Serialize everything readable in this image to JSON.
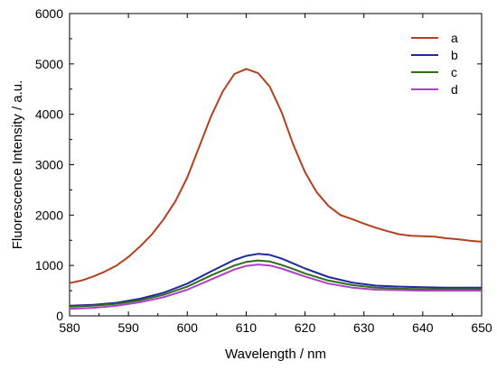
{
  "chart_data": {
    "type": "line",
    "title": "",
    "xlabel": "Wavelength / nm",
    "ylabel": "Fluorescence Intensity / a.u.",
    "xlim": [
      580,
      650
    ],
    "ylim": [
      0,
      6000
    ],
    "xticks": [
      580,
      590,
      600,
      610,
      620,
      630,
      640,
      650
    ],
    "yticks": [
      0,
      1000,
      2000,
      3000,
      4000,
      5000,
      6000
    ],
    "grid": false,
    "legend_position": "top-right",
    "series": [
      {
        "name": "a",
        "color": "#b3401f",
        "points": [
          [
            580,
            650
          ],
          [
            582,
            700
          ],
          [
            584,
            780
          ],
          [
            586,
            880
          ],
          [
            588,
            1000
          ],
          [
            590,
            1170
          ],
          [
            592,
            1380
          ],
          [
            594,
            1620
          ],
          [
            596,
            1920
          ],
          [
            598,
            2280
          ],
          [
            600,
            2750
          ],
          [
            602,
            3350
          ],
          [
            604,
            3950
          ],
          [
            606,
            4450
          ],
          [
            608,
            4800
          ],
          [
            610,
            4900
          ],
          [
            612,
            4820
          ],
          [
            614,
            4550
          ],
          [
            616,
            4050
          ],
          [
            618,
            3400
          ],
          [
            620,
            2850
          ],
          [
            622,
            2450
          ],
          [
            624,
            2180
          ],
          [
            626,
            2000
          ],
          [
            628,
            1920
          ],
          [
            630,
            1830
          ],
          [
            632,
            1750
          ],
          [
            634,
            1680
          ],
          [
            636,
            1620
          ],
          [
            638,
            1590
          ],
          [
            640,
            1580
          ],
          [
            642,
            1570
          ],
          [
            644,
            1540
          ],
          [
            646,
            1520
          ],
          [
            648,
            1490
          ],
          [
            650,
            1470
          ]
        ]
      },
      {
        "name": "b",
        "color": "#1f2a9e",
        "points": [
          [
            580,
            200
          ],
          [
            584,
            220
          ],
          [
            588,
            260
          ],
          [
            592,
            340
          ],
          [
            596,
            460
          ],
          [
            600,
            640
          ],
          [
            604,
            880
          ],
          [
            608,
            1110
          ],
          [
            610,
            1190
          ],
          [
            612,
            1230
          ],
          [
            614,
            1210
          ],
          [
            616,
            1140
          ],
          [
            618,
            1040
          ],
          [
            620,
            940
          ],
          [
            624,
            770
          ],
          [
            628,
            660
          ],
          [
            632,
            600
          ],
          [
            636,
            580
          ],
          [
            640,
            570
          ],
          [
            644,
            560
          ],
          [
            648,
            560
          ],
          [
            650,
            560
          ]
        ]
      },
      {
        "name": "c",
        "color": "#2e6e1a",
        "points": [
          [
            580,
            180
          ],
          [
            584,
            200
          ],
          [
            588,
            240
          ],
          [
            592,
            310
          ],
          [
            596,
            420
          ],
          [
            600,
            580
          ],
          [
            604,
            800
          ],
          [
            608,
            1000
          ],
          [
            610,
            1070
          ],
          [
            612,
            1100
          ],
          [
            614,
            1080
          ],
          [
            616,
            1010
          ],
          [
            618,
            930
          ],
          [
            620,
            840
          ],
          [
            624,
            700
          ],
          [
            628,
            610
          ],
          [
            632,
            560
          ],
          [
            636,
            540
          ],
          [
            640,
            530
          ],
          [
            644,
            530
          ],
          [
            648,
            530
          ],
          [
            650,
            530
          ]
        ]
      },
      {
        "name": "d",
        "color": "#b040c8",
        "points": [
          [
            580,
            140
          ],
          [
            584,
            160
          ],
          [
            588,
            200
          ],
          [
            592,
            270
          ],
          [
            596,
            370
          ],
          [
            600,
            520
          ],
          [
            604,
            720
          ],
          [
            608,
            920
          ],
          [
            610,
            990
          ],
          [
            612,
            1020
          ],
          [
            614,
            1000
          ],
          [
            616,
            940
          ],
          [
            618,
            860
          ],
          [
            620,
            780
          ],
          [
            624,
            640
          ],
          [
            628,
            560
          ],
          [
            632,
            520
          ],
          [
            636,
            510
          ],
          [
            640,
            500
          ],
          [
            644,
            500
          ],
          [
            648,
            500
          ],
          [
            650,
            500
          ]
        ]
      }
    ]
  }
}
